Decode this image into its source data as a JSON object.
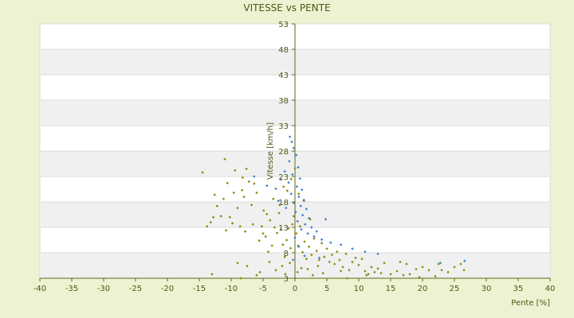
{
  "chart_data": {
    "type": "scatter",
    "title": "VITESSE vs PENTE",
    "xlabel": "Pente [%]",
    "ylabel": "Vitesse [km/h]",
    "xlim": [
      -40,
      40
    ],
    "ylim": [
      3,
      53
    ],
    "x_ticks": [
      "-40",
      "-35",
      "-30",
      "-25",
      "-20",
      "-15",
      "-10",
      "-5",
      "0",
      "5",
      "10",
      "15",
      "20",
      "25",
      "30",
      "35",
      "40"
    ],
    "y_ticks": [
      "3",
      "8",
      "13",
      "18",
      "23",
      "28",
      "33",
      "38",
      "43",
      "48",
      "53"
    ],
    "y_tick_values": [
      3,
      8,
      13,
      18,
      23,
      28,
      33,
      38,
      43,
      48,
      53
    ],
    "x_tick_values": [
      -40,
      -35,
      -30,
      -25,
      -20,
      -15,
      -10,
      -5,
      0,
      5,
      10,
      15,
      20,
      25,
      30,
      35,
      40
    ],
    "grid": "horizontal-bands",
    "colors": {
      "background": "#eef2d2",
      "plot": "#ffffff",
      "band": "#f0f0f0",
      "axis": "#5a6a1a",
      "series_a": "#8a8a10",
      "series_b": "#3a7fd0"
    },
    "series": [
      {
        "color": "#8a8a10",
        "points": [
          [
            -14.5,
            23.8
          ],
          [
            -13.8,
            13.2
          ],
          [
            -13.2,
            14.0
          ],
          [
            -12.6,
            19.4
          ],
          [
            -12.2,
            17.2
          ],
          [
            -11.6,
            15.2
          ],
          [
            -11.0,
            26.4
          ],
          [
            -10.6,
            21.7
          ],
          [
            -10.2,
            15.0
          ],
          [
            -9.8,
            13.8
          ],
          [
            -9.4,
            24.2
          ],
          [
            -9.0,
            16.8
          ],
          [
            -8.6,
            13.2
          ],
          [
            -8.3,
            20.3
          ],
          [
            -8.0,
            19.0
          ],
          [
            -7.6,
            24.5
          ],
          [
            -7.2,
            22.0
          ],
          [
            -6.8,
            17.4
          ],
          [
            -6.4,
            21.6
          ],
          [
            -6.0,
            19.8
          ],
          [
            -5.6,
            10.4
          ],
          [
            -5.2,
            13.2
          ],
          [
            -4.9,
            16.3
          ],
          [
            -4.6,
            11.2
          ],
          [
            -4.2,
            8.2
          ],
          [
            -3.9,
            14.4
          ],
          [
            -3.6,
            9.4
          ],
          [
            -3.2,
            13.0
          ],
          [
            -2.8,
            11.9
          ],
          [
            -2.5,
            15.8
          ],
          [
            -2.2,
            12.6
          ],
          [
            -1.9,
            9.6
          ],
          [
            -1.6,
            7.2
          ],
          [
            -1.3,
            10.5
          ],
          [
            -1.0,
            12.8
          ],
          [
            -0.7,
            8.9
          ],
          [
            -0.4,
            13.6
          ],
          [
            -0.2,
            15.2
          ],
          [
            0.2,
            11.8
          ],
          [
            0.5,
            9.4
          ],
          [
            0.8,
            13.2
          ],
          [
            1.2,
            8.1
          ],
          [
            1.5,
            10.2
          ],
          [
            1.8,
            6.8
          ],
          [
            2.2,
            9.2
          ],
          [
            2.6,
            7.6
          ],
          [
            3.0,
            10.8
          ],
          [
            3.4,
            8.4
          ],
          [
            3.8,
            6.6
          ],
          [
            4.2,
            9.9
          ],
          [
            4.6,
            7.2
          ],
          [
            5.0,
            8.8
          ],
          [
            5.4,
            6.2
          ],
          [
            5.8,
            7.6
          ],
          [
            6.2,
            5.8
          ],
          [
            6.6,
            8.2
          ],
          [
            7.0,
            6.6
          ],
          [
            7.5,
            5.2
          ],
          [
            8.0,
            7.8
          ],
          [
            8.5,
            4.6
          ],
          [
            9.0,
            6.2
          ],
          [
            9.5,
            7.0
          ],
          [
            10.0,
            5.6
          ],
          [
            10.5,
            6.8
          ],
          [
            11.0,
            4.4
          ],
          [
            11.5,
            3.8
          ],
          [
            12.0,
            5.2
          ],
          [
            12.5,
            4.2
          ],
          [
            13.0,
            4.9
          ],
          [
            13.5,
            4.0
          ],
          [
            14.0,
            6.0
          ],
          [
            15.0,
            3.8
          ],
          [
            16.0,
            4.4
          ],
          [
            16.5,
            6.2
          ],
          [
            17.0,
            3.6
          ],
          [
            17.5,
            5.8
          ],
          [
            18.0,
            3.8
          ],
          [
            19.0,
            4.8
          ],
          [
            19.5,
            3.2
          ],
          [
            20.0,
            5.2
          ],
          [
            21.0,
            4.6
          ],
          [
            22.0,
            3.4
          ],
          [
            22.5,
            5.8
          ],
          [
            23.0,
            4.6
          ],
          [
            24.0,
            4.2
          ],
          [
            25.0,
            5.2
          ],
          [
            26.0,
            5.8
          ],
          [
            26.5,
            4.6
          ],
          [
            -6.0,
            3.6
          ],
          [
            -8.5,
            3.0
          ],
          [
            -13.0,
            3.8
          ],
          [
            -3.0,
            4.6
          ],
          [
            -1.5,
            3.8
          ],
          [
            0.4,
            4.2
          ],
          [
            2.8,
            3.6
          ],
          [
            4.4,
            4.0
          ],
          [
            7.2,
            4.4
          ],
          [
            8.2,
            3.0
          ],
          [
            11.2,
            3.6
          ],
          [
            -9.0,
            6.0
          ],
          [
            -7.5,
            5.4
          ],
          [
            -5.5,
            4.2
          ],
          [
            -4.0,
            6.2
          ],
          [
            -2.0,
            5.4
          ],
          [
            -0.8,
            6.0
          ],
          [
            1.0,
            5.0
          ],
          [
            2.0,
            4.8
          ],
          [
            3.6,
            5.4
          ],
          [
            -4.4,
            15.6
          ],
          [
            -2.4,
            17.4
          ],
          [
            -1.2,
            20.2
          ],
          [
            -0.6,
            22.5
          ],
          [
            0.0,
            24.6
          ],
          [
            0.6,
            19.6
          ],
          [
            1.4,
            18.2
          ],
          [
            2.4,
            14.6
          ],
          [
            -3.4,
            18.6
          ],
          [
            -1.8,
            21.0
          ],
          [
            -5.0,
            11.8
          ],
          [
            -6.6,
            13.6
          ],
          [
            -7.8,
            12.2
          ],
          [
            -10.8,
            12.4
          ],
          [
            -12.8,
            15.0
          ],
          [
            -11.2,
            18.6
          ],
          [
            -9.6,
            19.8
          ],
          [
            -8.2,
            22.8
          ]
        ]
      },
      {
        "color": "#3a7fd0",
        "points": [
          [
            -0.8,
            30.8
          ],
          [
            -0.5,
            29.8
          ],
          [
            -0.2,
            28.6
          ],
          [
            0.2,
            27.2
          ],
          [
            -0.9,
            26.0
          ],
          [
            0.5,
            24.8
          ],
          [
            -0.4,
            23.4
          ],
          [
            0.8,
            22.6
          ],
          [
            -1.0,
            21.8
          ],
          [
            0.3,
            21.0
          ],
          [
            1.1,
            20.4
          ],
          [
            -0.6,
            19.6
          ],
          [
            0.6,
            19.0
          ],
          [
            1.4,
            18.4
          ],
          [
            -0.2,
            17.8
          ],
          [
            0.9,
            17.2
          ],
          [
            1.8,
            16.6
          ],
          [
            0.1,
            16.0
          ],
          [
            1.2,
            15.4
          ],
          [
            2.2,
            14.8
          ],
          [
            0.4,
            14.2
          ],
          [
            1.6,
            13.6
          ],
          [
            2.6,
            13.0
          ],
          [
            3.4,
            12.2
          ],
          [
            1.0,
            12.6
          ],
          [
            2.0,
            11.8
          ],
          [
            3.0,
            11.2
          ],
          [
            4.2,
            10.6
          ],
          [
            5.6,
            10.0
          ],
          [
            7.2,
            9.6
          ],
          [
            9.0,
            8.8
          ],
          [
            11.0,
            8.2
          ],
          [
            13.0,
            7.8
          ],
          [
            -1.6,
            24.0
          ],
          [
            -2.2,
            22.4
          ],
          [
            -3.0,
            20.6
          ],
          [
            -4.4,
            21.2
          ],
          [
            -6.4,
            23.0
          ],
          [
            -2.6,
            18.2
          ],
          [
            -1.4,
            16.8
          ],
          [
            0.0,
            11.0
          ],
          [
            0.6,
            9.2
          ],
          [
            1.5,
            7.4
          ],
          [
            -0.3,
            6.6
          ],
          [
            22.8,
            6.0
          ],
          [
            26.6,
            6.4
          ],
          [
            4.8,
            14.6
          ],
          [
            3.8,
            7.0
          ]
        ]
      }
    ]
  }
}
